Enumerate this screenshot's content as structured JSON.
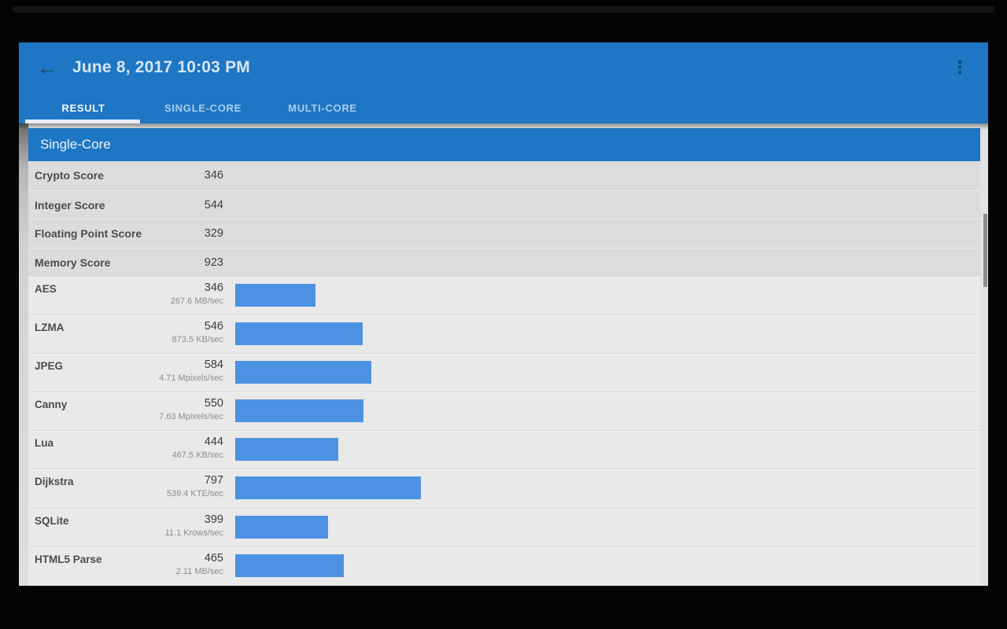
{
  "app": {
    "title": "June 8, 2017 10:03 PM",
    "back_icon": "←",
    "overflow_icon": "⋮",
    "tabs": [
      {
        "label": "RESULT",
        "active": true
      },
      {
        "label": "SINGLE-CORE",
        "active": false
      },
      {
        "label": "MULTI-CORE",
        "active": false
      }
    ]
  },
  "section": {
    "title": "Single-Core"
  },
  "summary_rows": [
    {
      "label": "Crypto Score",
      "value": "346"
    },
    {
      "label": "Integer Score",
      "value": "544"
    },
    {
      "label": "Floating Point Score",
      "value": "329"
    },
    {
      "label": "Memory Score",
      "value": "923"
    }
  ],
  "benchmarks": [
    {
      "name": "AES",
      "score": 346,
      "rate": "267.6 MB/sec"
    },
    {
      "name": "LZMA",
      "score": 546,
      "rate": "873.5 KB/sec"
    },
    {
      "name": "JPEG",
      "score": 584,
      "rate": "4.71 Mpixels/sec"
    },
    {
      "name": "Canny",
      "score": 550,
      "rate": "7.63 Mpixels/sec"
    },
    {
      "name": "Lua",
      "score": 444,
      "rate": "467.5 KB/sec"
    },
    {
      "name": "Dijkstra",
      "score": 797,
      "rate": "539.4 KTE/sec"
    },
    {
      "name": "SQLite",
      "score": 399,
      "rate": "11.1 Krows/sec"
    },
    {
      "name": "HTML5 Parse",
      "score": 465,
      "rate": "2.11 MB/sec"
    }
  ],
  "chart_data": {
    "type": "bar",
    "title": "Single-Core",
    "categories": [
      "AES",
      "LZMA",
      "JPEG",
      "Canny",
      "Lua",
      "Dijkstra",
      "SQLite",
      "HTML5 Parse"
    ],
    "values": [
      346,
      546,
      584,
      550,
      444,
      797,
      399,
      465
    ],
    "value_labels": [
      "267.6 MB/sec",
      "873.5 KB/sec",
      "4.71 Mpixels/sec",
      "7.63 Mpixels/sec",
      "467.5 KB/sec",
      "539.4 KTE/sec",
      "11.1 Krows/sec",
      "2.11 MB/sec"
    ],
    "xlabel": "",
    "ylabel": "",
    "xlim": [
      0,
      3200
    ],
    "orientation": "horizontal",
    "grid": false,
    "legend": false
  },
  "colors": {
    "appbar_blue": "#1e76c4",
    "section_blue": "#1e77c5",
    "bar_blue": "#4d92e2",
    "summary_row_bg": "#dcdcdc",
    "bench_row_bg": "#e9e9e9",
    "title_text": "#d6e5f4",
    "tab_active_text": "#f2f7fb",
    "tab_inactive_text": "#a9cdec",
    "label_text": "#4c4c4c",
    "value_text": "#3d3d3d",
    "rate_text": "#8d8d8d",
    "frame_bg": "#040404"
  }
}
